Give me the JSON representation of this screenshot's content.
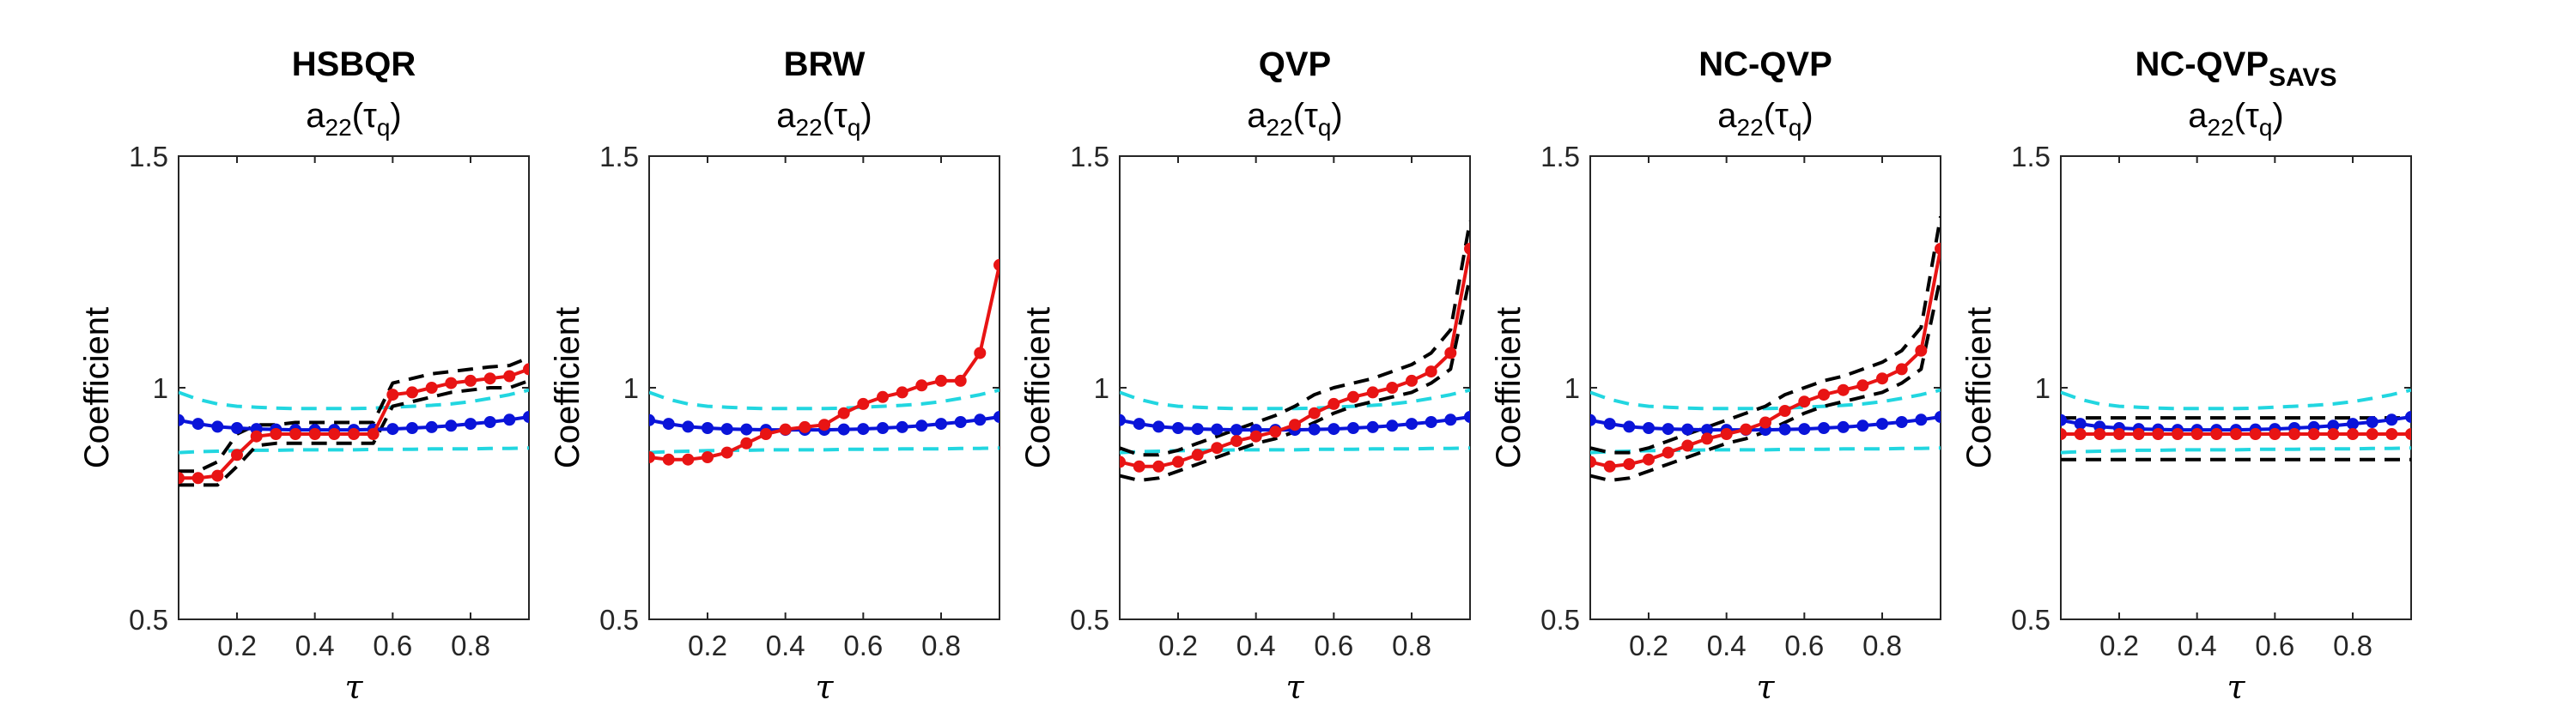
{
  "chart_data": [
    {
      "type": "line",
      "title": "HSBQR",
      "title_sub": "",
      "subtitle": "a22(τq)",
      "subtitle_main": "a",
      "subtitle_sub": "22",
      "subtitle_arg": "(τ",
      "subtitle_arg_sub": "q",
      "subtitle_close": ")",
      "xlabel": "τ",
      "ylabel": "Coefficient",
      "xlim": [
        0.05,
        0.95
      ],
      "ylim": [
        0.5,
        1.5
      ],
      "xticks": [
        "0.2",
        "0.4",
        "0.6",
        "0.8"
      ],
      "yticks": [
        "0.5",
        "1",
        "1.5"
      ],
      "x": [
        0.05,
        0.1,
        0.15,
        0.2,
        0.25,
        0.3,
        0.35,
        0.4,
        0.45,
        0.5,
        0.55,
        0.6,
        0.65,
        0.7,
        0.75,
        0.8,
        0.85,
        0.9,
        0.95
      ],
      "series": [
        {
          "role": "band_upper",
          "color": "#22d6e0",
          "dashed": true,
          "values": [
            0.99,
            0.975,
            0.965,
            0.96,
            0.958,
            0.956,
            0.955,
            0.955,
            0.955,
            0.955,
            0.956,
            0.958,
            0.96,
            0.962,
            0.965,
            0.97,
            0.977,
            0.985,
            0.995
          ]
        },
        {
          "role": "band_lower",
          "color": "#22d6e0",
          "dashed": true,
          "values": [
            0.86,
            0.862,
            0.863,
            0.864,
            0.865,
            0.865,
            0.866,
            0.866,
            0.866,
            0.866,
            0.867,
            0.867,
            0.867,
            0.868,
            0.868,
            0.868,
            0.869,
            0.869,
            0.87
          ]
        },
        {
          "role": "ci_upper",
          "color": "#000000",
          "dashed": true,
          "values": [
            0.82,
            0.82,
            0.84,
            0.9,
            0.92,
            0.92,
            0.925,
            0.925,
            0.925,
            0.925,
            0.925,
            1.01,
            1.02,
            1.03,
            1.035,
            1.04,
            1.045,
            1.048,
            1.065
          ]
        },
        {
          "role": "ci_lower",
          "color": "#000000",
          "dashed": true,
          "values": [
            0.79,
            0.79,
            0.79,
            0.83,
            0.875,
            0.88,
            0.88,
            0.88,
            0.88,
            0.88,
            0.88,
            0.96,
            0.97,
            0.98,
            0.99,
            0.995,
            1.0,
            1.0,
            1.015
          ]
        },
        {
          "role": "benchmark",
          "color": "#0a14d9",
          "dashed": false,
          "markers": true,
          "values": [
            0.93,
            0.922,
            0.916,
            0.913,
            0.911,
            0.91,
            0.909,
            0.909,
            0.909,
            0.909,
            0.91,
            0.911,
            0.913,
            0.915,
            0.918,
            0.922,
            0.926,
            0.931,
            0.937
          ]
        },
        {
          "role": "estimate",
          "color": "#e81414",
          "dashed": false,
          "markers": true,
          "values": [
            0.805,
            0.805,
            0.81,
            0.855,
            0.895,
            0.9,
            0.9,
            0.9,
            0.9,
            0.9,
            0.9,
            0.985,
            0.99,
            1.0,
            1.01,
            1.015,
            1.02,
            1.025,
            1.04
          ]
        }
      ]
    },
    {
      "type": "line",
      "title": "BRW",
      "title_sub": "",
      "subtitle": "a22(τq)",
      "subtitle_main": "a",
      "subtitle_sub": "22",
      "subtitle_arg": "(τ",
      "subtitle_arg_sub": "q",
      "subtitle_close": ")",
      "xlabel": "τ",
      "ylabel": "Coefficient",
      "xlim": [
        0.05,
        0.95
      ],
      "ylim": [
        0.5,
        1.5
      ],
      "xticks": [
        "0.2",
        "0.4",
        "0.6",
        "0.8"
      ],
      "yticks": [
        "0.5",
        "1",
        "1.5"
      ],
      "x": [
        0.05,
        0.1,
        0.15,
        0.2,
        0.25,
        0.3,
        0.35,
        0.4,
        0.45,
        0.5,
        0.55,
        0.6,
        0.65,
        0.7,
        0.75,
        0.8,
        0.85,
        0.9,
        0.95
      ],
      "series": [
        {
          "role": "band_upper",
          "color": "#22d6e0",
          "dashed": true,
          "values": [
            0.99,
            0.975,
            0.965,
            0.96,
            0.958,
            0.956,
            0.955,
            0.955,
            0.955,
            0.955,
            0.956,
            0.958,
            0.96,
            0.962,
            0.965,
            0.97,
            0.977,
            0.985,
            0.995
          ]
        },
        {
          "role": "band_lower",
          "color": "#22d6e0",
          "dashed": true,
          "values": [
            0.86,
            0.862,
            0.863,
            0.864,
            0.865,
            0.865,
            0.866,
            0.866,
            0.866,
            0.866,
            0.867,
            0.867,
            0.867,
            0.868,
            0.868,
            0.868,
            0.869,
            0.869,
            0.87
          ]
        },
        {
          "role": "benchmark",
          "color": "#0a14d9",
          "dashed": false,
          "markers": true,
          "values": [
            0.93,
            0.922,
            0.916,
            0.913,
            0.911,
            0.91,
            0.909,
            0.909,
            0.909,
            0.909,
            0.91,
            0.911,
            0.913,
            0.915,
            0.918,
            0.922,
            0.926,
            0.931,
            0.937
          ]
        },
        {
          "role": "estimate",
          "color": "#e81414",
          "dashed": false,
          "markers": true,
          "values": [
            0.85,
            0.845,
            0.845,
            0.85,
            0.86,
            0.88,
            0.9,
            0.91,
            0.915,
            0.92,
            0.945,
            0.965,
            0.98,
            0.99,
            1.005,
            1.015,
            1.015,
            1.075,
            1.265
          ]
        }
      ]
    },
    {
      "type": "line",
      "title": "QVP",
      "title_sub": "",
      "subtitle": "a22(τq)",
      "subtitle_main": "a",
      "subtitle_sub": "22",
      "subtitle_arg": "(τ",
      "subtitle_arg_sub": "q",
      "subtitle_close": ")",
      "xlabel": "τ",
      "ylabel": "Coefficient",
      "xlim": [
        0.05,
        0.95
      ],
      "ylim": [
        0.5,
        1.5
      ],
      "xticks": [
        "0.2",
        "0.4",
        "0.6",
        "0.8"
      ],
      "yticks": [
        "0.5",
        "1",
        "1.5"
      ],
      "x": [
        0.05,
        0.1,
        0.15,
        0.2,
        0.25,
        0.3,
        0.35,
        0.4,
        0.45,
        0.5,
        0.55,
        0.6,
        0.65,
        0.7,
        0.75,
        0.8,
        0.85,
        0.9,
        0.95
      ],
      "series": [
        {
          "role": "band_upper",
          "color": "#22d6e0",
          "dashed": true,
          "values": [
            0.99,
            0.975,
            0.965,
            0.96,
            0.958,
            0.956,
            0.955,
            0.955,
            0.955,
            0.955,
            0.956,
            0.958,
            0.96,
            0.962,
            0.965,
            0.97,
            0.977,
            0.985,
            0.995
          ]
        },
        {
          "role": "band_lower",
          "color": "#22d6e0",
          "dashed": true,
          "values": [
            0.86,
            0.862,
            0.863,
            0.864,
            0.865,
            0.865,
            0.866,
            0.866,
            0.866,
            0.866,
            0.867,
            0.867,
            0.867,
            0.868,
            0.868,
            0.868,
            0.869,
            0.869,
            0.87
          ]
        },
        {
          "role": "ci_upper",
          "color": "#000000",
          "dashed": true,
          "values": [
            0.87,
            0.855,
            0.855,
            0.865,
            0.88,
            0.895,
            0.91,
            0.925,
            0.94,
            0.96,
            0.985,
            1.0,
            1.01,
            1.02,
            1.035,
            1.05,
            1.075,
            1.125,
            1.36
          ]
        },
        {
          "role": "ci_lower",
          "color": "#000000",
          "dashed": true,
          "values": [
            0.81,
            0.8,
            0.805,
            0.82,
            0.835,
            0.85,
            0.865,
            0.88,
            0.89,
            0.905,
            0.925,
            0.945,
            0.96,
            0.97,
            0.98,
            0.99,
            1.01,
            1.04,
            1.24
          ]
        },
        {
          "role": "benchmark",
          "color": "#0a14d9",
          "dashed": false,
          "markers": true,
          "values": [
            0.93,
            0.922,
            0.916,
            0.913,
            0.911,
            0.91,
            0.909,
            0.909,
            0.909,
            0.909,
            0.91,
            0.911,
            0.913,
            0.915,
            0.918,
            0.922,
            0.926,
            0.931,
            0.937
          ]
        },
        {
          "role": "estimate",
          "color": "#e81414",
          "dashed": false,
          "markers": true,
          "values": [
            0.84,
            0.83,
            0.83,
            0.84,
            0.855,
            0.87,
            0.885,
            0.895,
            0.905,
            0.92,
            0.945,
            0.965,
            0.98,
            0.99,
            1.0,
            1.015,
            1.035,
            1.075,
            1.3
          ]
        }
      ]
    },
    {
      "type": "line",
      "title": "NC-QVP",
      "title_sub": "",
      "subtitle": "a22(τq)",
      "subtitle_main": "a",
      "subtitle_sub": "22",
      "subtitle_arg": "(τ",
      "subtitle_arg_sub": "q",
      "subtitle_close": ")",
      "xlabel": "τ",
      "ylabel": "Coefficient",
      "xlim": [
        0.05,
        0.95
      ],
      "ylim": [
        0.5,
        1.5
      ],
      "xticks": [
        "0.2",
        "0.4",
        "0.6",
        "0.8"
      ],
      "yticks": [
        "0.5",
        "1",
        "1.5"
      ],
      "x": [
        0.05,
        0.1,
        0.15,
        0.2,
        0.25,
        0.3,
        0.35,
        0.4,
        0.45,
        0.5,
        0.55,
        0.6,
        0.65,
        0.7,
        0.75,
        0.8,
        0.85,
        0.9,
        0.95
      ],
      "series": [
        {
          "role": "band_upper",
          "color": "#22d6e0",
          "dashed": true,
          "values": [
            0.99,
            0.975,
            0.965,
            0.96,
            0.958,
            0.956,
            0.955,
            0.955,
            0.955,
            0.955,
            0.956,
            0.958,
            0.96,
            0.962,
            0.965,
            0.97,
            0.977,
            0.985,
            0.995
          ]
        },
        {
          "role": "band_lower",
          "color": "#22d6e0",
          "dashed": true,
          "values": [
            0.86,
            0.862,
            0.863,
            0.864,
            0.865,
            0.865,
            0.866,
            0.866,
            0.866,
            0.866,
            0.867,
            0.867,
            0.867,
            0.868,
            0.868,
            0.868,
            0.869,
            0.869,
            0.87
          ]
        },
        {
          "role": "ci_upper",
          "color": "#000000",
          "dashed": true,
          "values": [
            0.87,
            0.86,
            0.86,
            0.87,
            0.885,
            0.9,
            0.915,
            0.93,
            0.945,
            0.96,
            0.985,
            1.0,
            1.015,
            1.025,
            1.04,
            1.055,
            1.08,
            1.13,
            1.37
          ]
        },
        {
          "role": "ci_lower",
          "color": "#000000",
          "dashed": true,
          "values": [
            0.81,
            0.8,
            0.805,
            0.82,
            0.835,
            0.85,
            0.865,
            0.88,
            0.89,
            0.905,
            0.925,
            0.945,
            0.96,
            0.97,
            0.98,
            0.99,
            1.01,
            1.04,
            1.24
          ]
        },
        {
          "role": "benchmark",
          "color": "#0a14d9",
          "dashed": false,
          "markers": true,
          "values": [
            0.93,
            0.922,
            0.916,
            0.913,
            0.911,
            0.91,
            0.909,
            0.909,
            0.909,
            0.909,
            0.91,
            0.911,
            0.913,
            0.915,
            0.918,
            0.922,
            0.926,
            0.931,
            0.937
          ]
        },
        {
          "role": "estimate",
          "color": "#e81414",
          "dashed": false,
          "markers": true,
          "values": [
            0.84,
            0.83,
            0.835,
            0.845,
            0.86,
            0.875,
            0.89,
            0.9,
            0.91,
            0.925,
            0.95,
            0.97,
            0.985,
            0.995,
            1.005,
            1.02,
            1.04,
            1.08,
            1.3
          ]
        }
      ]
    },
    {
      "type": "line",
      "title": "NC-QVP",
      "title_sub": "SAVS",
      "subtitle": "a22(τq)",
      "subtitle_main": "a",
      "subtitle_sub": "22",
      "subtitle_arg": "(τ",
      "subtitle_arg_sub": "q",
      "subtitle_close": ")",
      "xlabel": "τ",
      "ylabel": "Coefficient",
      "xlim": [
        0.05,
        0.95
      ],
      "ylim": [
        0.5,
        1.5
      ],
      "xticks": [
        "0.2",
        "0.4",
        "0.6",
        "0.8"
      ],
      "yticks": [
        "0.5",
        "1",
        "1.5"
      ],
      "x": [
        0.05,
        0.1,
        0.15,
        0.2,
        0.25,
        0.3,
        0.35,
        0.4,
        0.45,
        0.5,
        0.55,
        0.6,
        0.65,
        0.7,
        0.75,
        0.8,
        0.85,
        0.9,
        0.95
      ],
      "series": [
        {
          "role": "band_upper",
          "color": "#22d6e0",
          "dashed": true,
          "values": [
            0.99,
            0.975,
            0.965,
            0.96,
            0.958,
            0.956,
            0.955,
            0.955,
            0.955,
            0.955,
            0.956,
            0.958,
            0.96,
            0.962,
            0.965,
            0.97,
            0.977,
            0.985,
            0.995
          ]
        },
        {
          "role": "band_lower",
          "color": "#22d6e0",
          "dashed": true,
          "values": [
            0.86,
            0.862,
            0.863,
            0.864,
            0.865,
            0.865,
            0.866,
            0.866,
            0.866,
            0.866,
            0.867,
            0.867,
            0.867,
            0.868,
            0.868,
            0.868,
            0.869,
            0.869,
            0.87
          ]
        },
        {
          "role": "ci_upper",
          "color": "#000000",
          "dashed": true,
          "values": [
            0.935,
            0.935,
            0.935,
            0.935,
            0.935,
            0.935,
            0.935,
            0.935,
            0.935,
            0.935,
            0.935,
            0.935,
            0.935,
            0.935,
            0.935,
            0.935,
            0.935,
            0.935,
            0.935
          ]
        },
        {
          "role": "ci_lower",
          "color": "#000000",
          "dashed": true,
          "values": [
            0.845,
            0.845,
            0.845,
            0.845,
            0.845,
            0.845,
            0.845,
            0.845,
            0.845,
            0.845,
            0.845,
            0.845,
            0.845,
            0.845,
            0.845,
            0.845,
            0.845,
            0.845,
            0.845
          ]
        },
        {
          "role": "benchmark",
          "color": "#0a14d9",
          "dashed": false,
          "markers": true,
          "values": [
            0.93,
            0.922,
            0.916,
            0.913,
            0.911,
            0.91,
            0.909,
            0.909,
            0.909,
            0.909,
            0.91,
            0.911,
            0.913,
            0.915,
            0.918,
            0.922,
            0.926,
            0.931,
            0.937
          ]
        },
        {
          "role": "estimate",
          "color": "#e81414",
          "dashed": false,
          "markers": true,
          "values": [
            0.9,
            0.9,
            0.9,
            0.9,
            0.9,
            0.9,
            0.9,
            0.9,
            0.9,
            0.9,
            0.9,
            0.9,
            0.9,
            0.9,
            0.9,
            0.9,
            0.9,
            0.9,
            0.9
          ]
        }
      ]
    }
  ]
}
